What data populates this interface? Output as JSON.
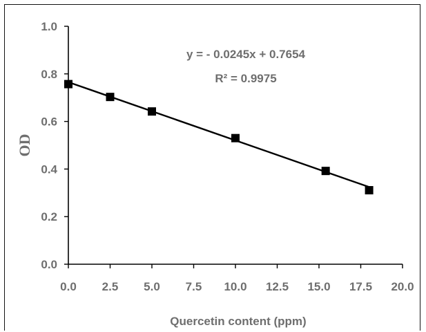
{
  "chart_data": {
    "type": "scatter",
    "xlabel": "Quercetin content (ppm)",
    "ylabel": "OD",
    "xlim": [
      0,
      20
    ],
    "ylim": [
      0,
      1
    ],
    "x_ticks": [
      "0.0",
      "2.5",
      "5.0",
      "7.5",
      "10.0",
      "12.5",
      "15.0",
      "17.5",
      "20.0"
    ],
    "y_ticks": [
      "0.0",
      "0.2",
      "0.4",
      "0.6",
      "0.8",
      "1.0"
    ],
    "series": [
      {
        "points": [
          {
            "x": 0,
            "y": 0.757
          },
          {
            "x": 2.5,
            "y": 0.703
          },
          {
            "x": 5,
            "y": 0.642
          },
          {
            "x": 10,
            "y": 0.53
          },
          {
            "x": 15.4,
            "y": 0.392
          },
          {
            "x": 18,
            "y": 0.311
          }
        ]
      }
    ],
    "trendline": {
      "slope": -0.0245,
      "intercept": 0.7654,
      "x_range": [
        0,
        18
      ]
    },
    "annotations": {
      "equation": "y = - 0.0245x + 0.7654",
      "r_squared": "R² = 0.9975"
    },
    "grid": false,
    "legend": "none",
    "colors": {
      "marker": "#000000",
      "line": "#000000",
      "text": "#6e6e6e",
      "axis": "#000000"
    }
  }
}
